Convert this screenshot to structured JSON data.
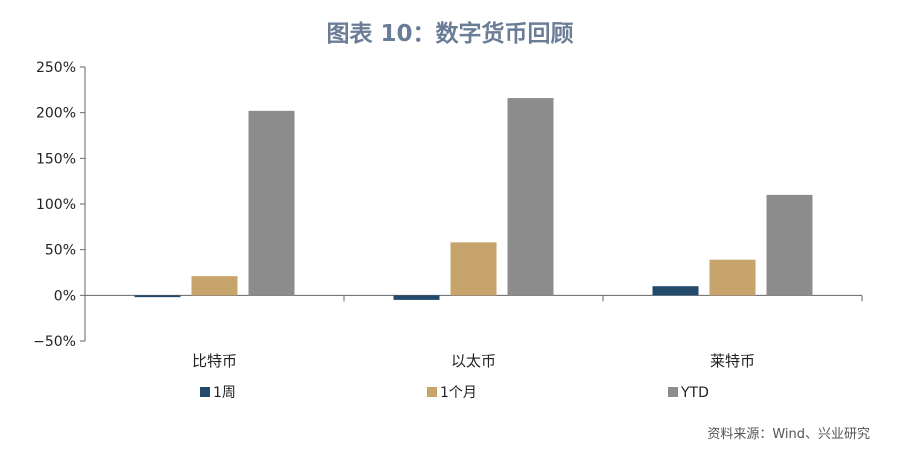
{
  "chart_data": {
    "type": "bar",
    "title": "图表 10：数字货币回顾",
    "categories": [
      "比特币",
      "以太币",
      "莱特币"
    ],
    "series": [
      {
        "name": "1周",
        "values": [
          -2,
          -5,
          10
        ],
        "color": "#234a6b"
      },
      {
        "name": "1个月",
        "values": [
          21,
          58,
          39
        ],
        "color": "#c6a46b"
      },
      {
        "name": "YTD",
        "values": [
          202,
          216,
          110
        ],
        "color": "#8c8c8c"
      }
    ],
    "ylim": [
      -50,
      250
    ],
    "yticks": [
      -50,
      0,
      50,
      100,
      150,
      200,
      250
    ],
    "ytick_labels": [
      "−50%",
      "0%",
      "50%",
      "100%",
      "150%",
      "200%",
      "250%"
    ],
    "xlabel": "",
    "ylabel": "",
    "grid": false,
    "legend_position": "bottom-left"
  },
  "source": "资料来源：Wind、兴业研究"
}
